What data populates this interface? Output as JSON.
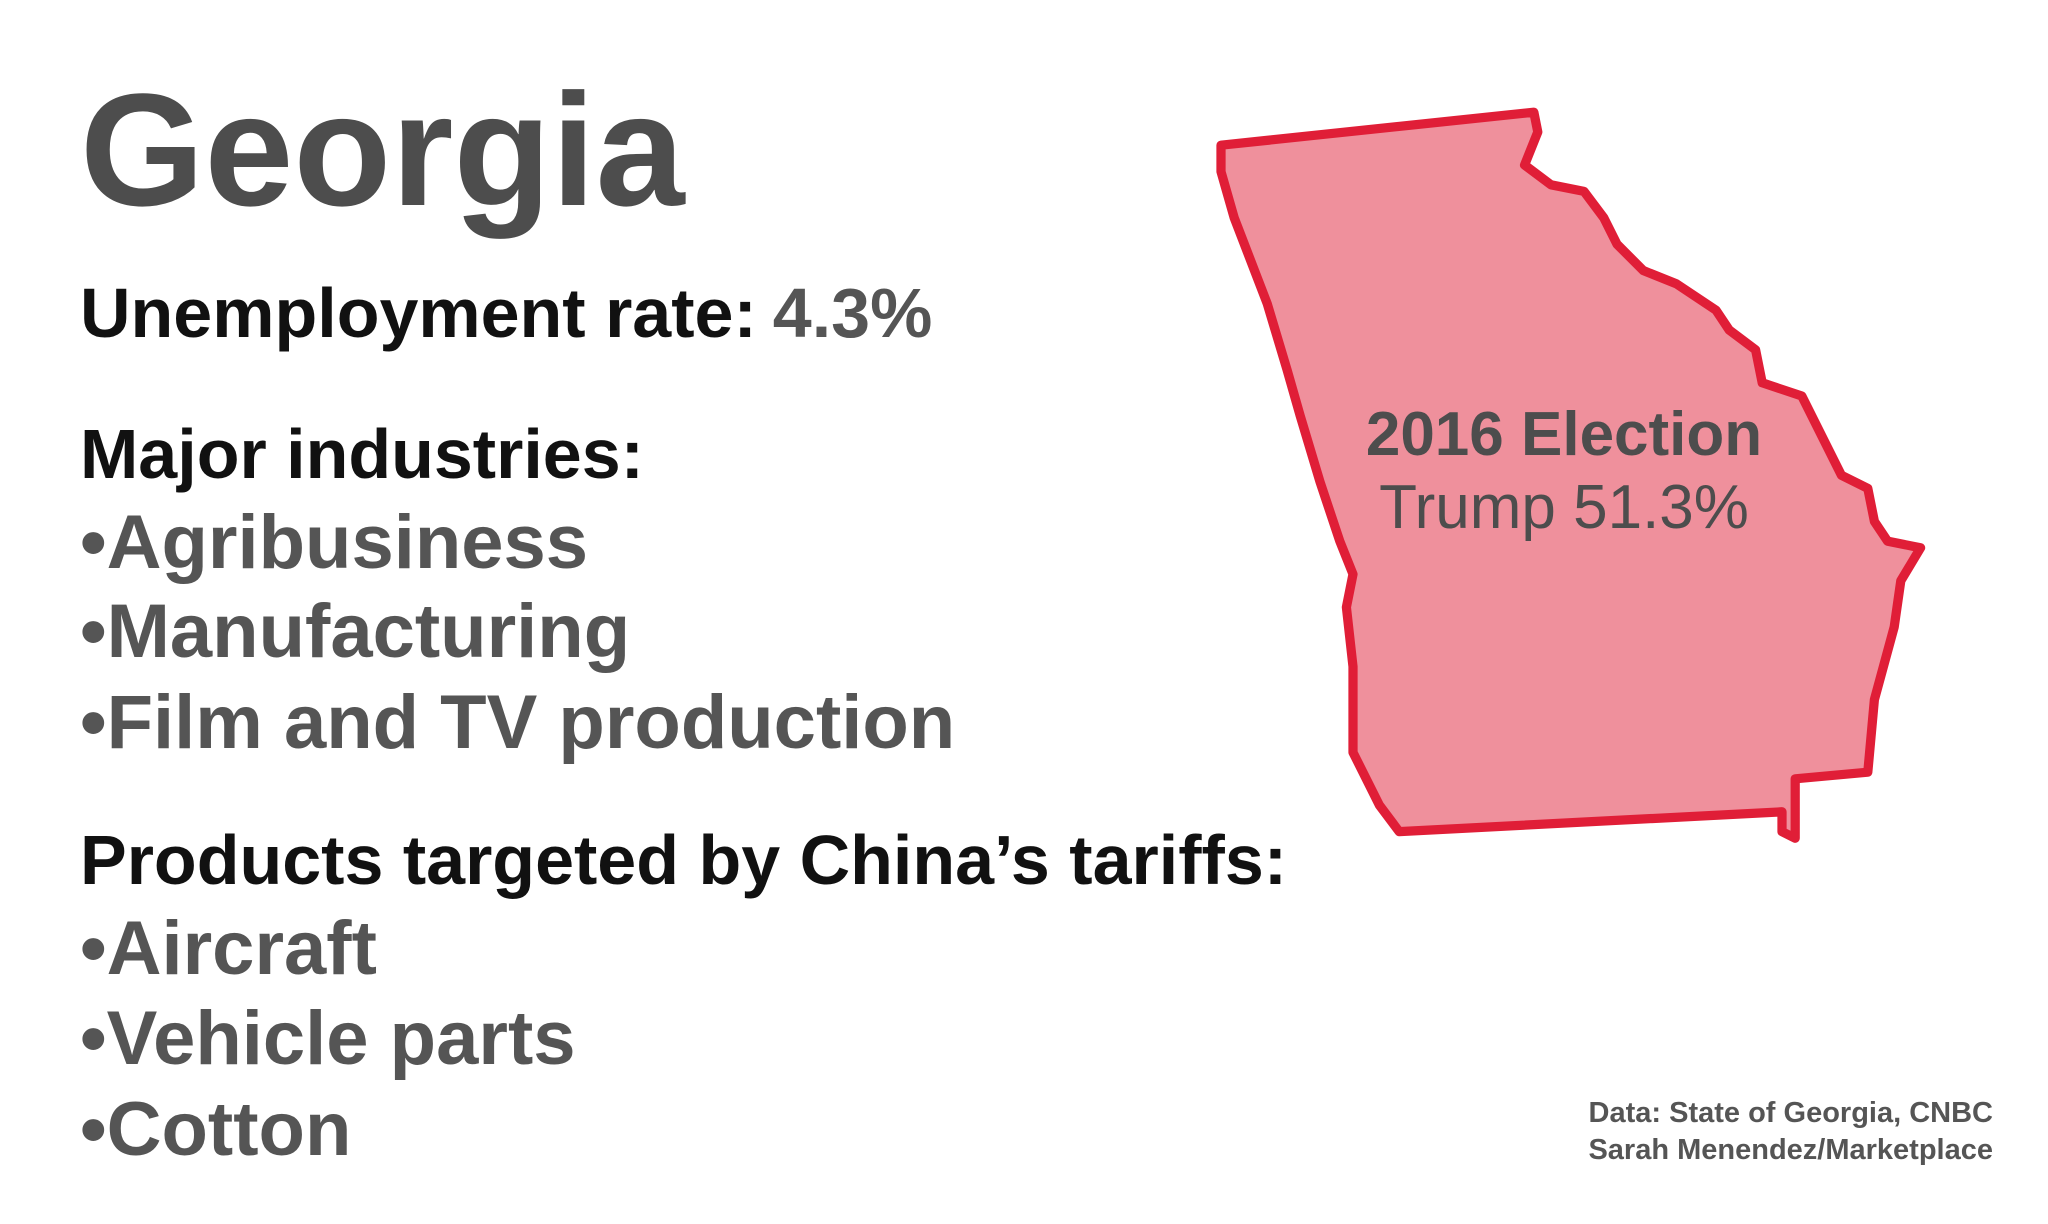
{
  "header": {
    "title": "Georgia"
  },
  "unemployment": {
    "label": "Unemployment rate:",
    "value": "4.3%"
  },
  "industries": {
    "heading": "Major industries:",
    "items": [
      "•Agribusiness",
      "•Manufacturing",
      "•Film and TV production"
    ]
  },
  "tariffs": {
    "heading": "Products targeted by China’s tariffs:",
    "items": [
      "•Aircraft",
      "•Vehicle parts",
      "•Cotton"
    ]
  },
  "map": {
    "label": "2016 Election",
    "result": "Trump 51.3%"
  },
  "source": {
    "lines": [
      "Data: State of Georgia, CNBC",
      "Sarah Menendez/Marketplace"
    ]
  }
}
